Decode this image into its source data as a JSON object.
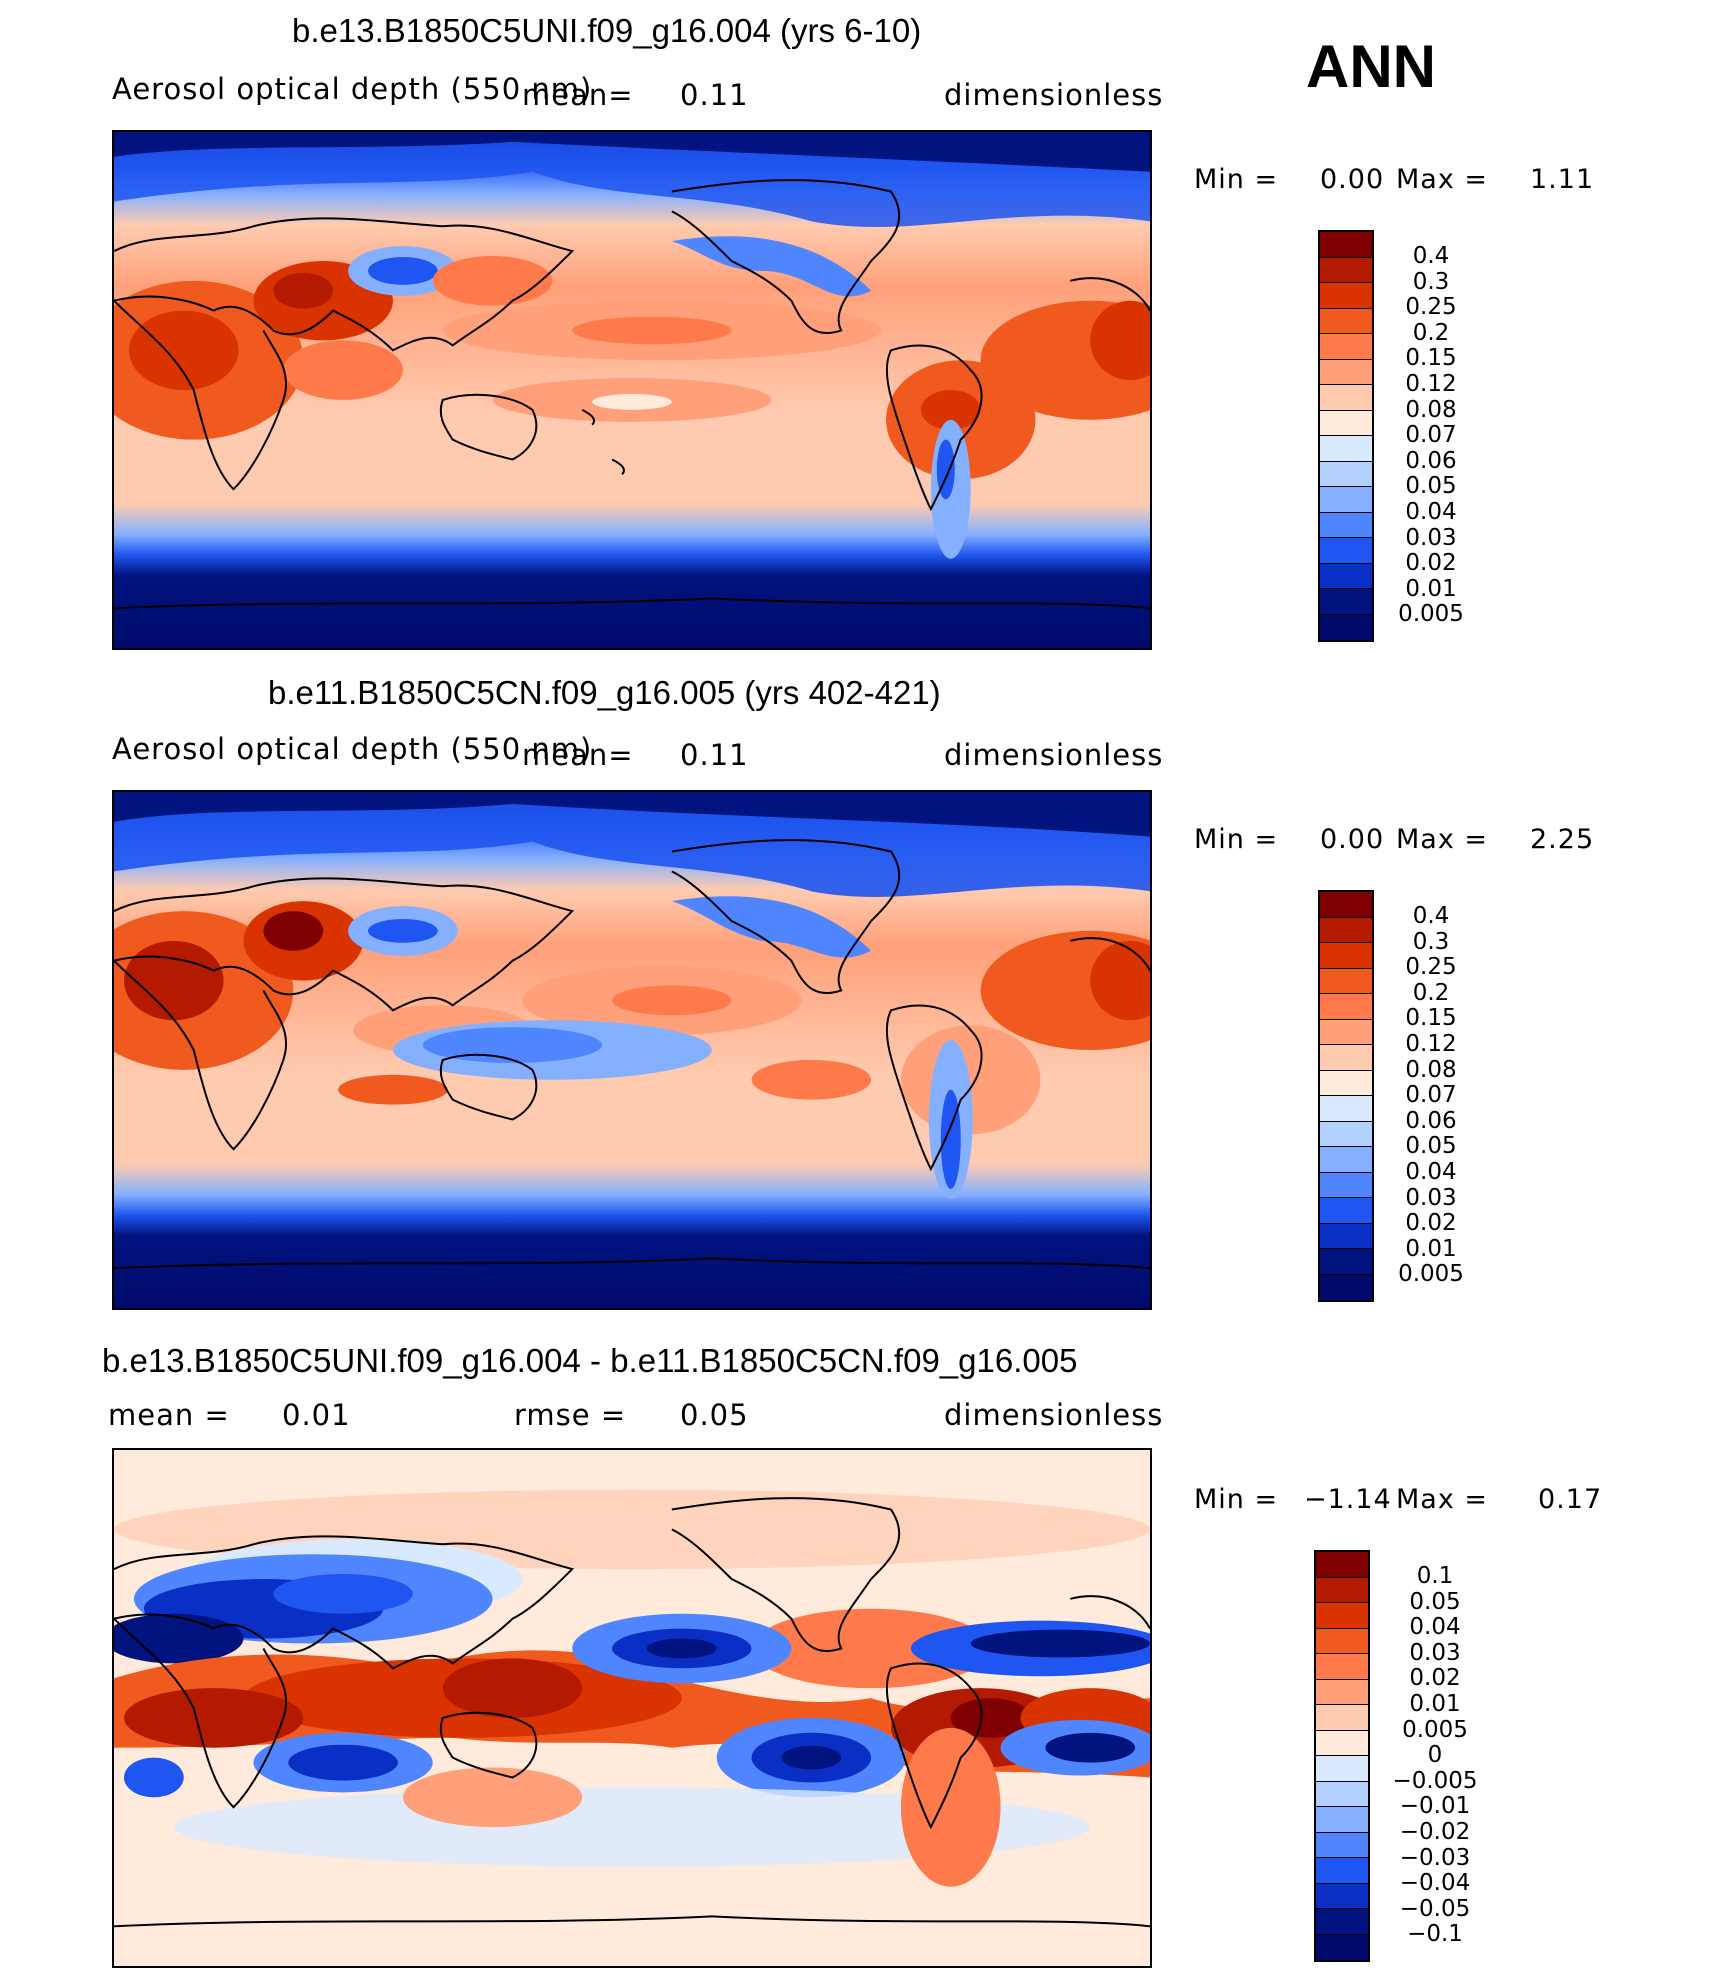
{
  "season": "ANN",
  "panels": [
    {
      "id": "top",
      "title": "b.e13.B1850C5UNI.f09_g16.004 (yrs 6-10)",
      "variable": "Aerosol optical depth (550 nm)",
      "mean_label": "mean=",
      "mean_value": "0.11",
      "units": "dimensionless",
      "min_label": "Min =",
      "min_value": "0.00",
      "max_label": "Max =",
      "max_value": "1.11",
      "colorbar_labels": [
        "0.4",
        "0.3",
        "0.25",
        "0.2",
        "0.15",
        "0.12",
        "0.08",
        "0.07",
        "0.06",
        "0.05",
        "0.04",
        "0.03",
        "0.02",
        "0.01",
        "0.005"
      ]
    },
    {
      "id": "middle",
      "title": "b.e11.B1850C5CN.f09_g16.005 (yrs 402-421)",
      "variable": "Aerosol optical depth (550 nm)",
      "mean_label": "mean=",
      "mean_value": "0.11",
      "units": "dimensionless",
      "min_label": "Min =",
      "min_value": "0.00",
      "max_label": "Max =",
      "max_value": "2.25",
      "colorbar_labels": [
        "0.4",
        "0.3",
        "0.25",
        "0.2",
        "0.15",
        "0.12",
        "0.08",
        "0.07",
        "0.06",
        "0.05",
        "0.04",
        "0.03",
        "0.02",
        "0.01",
        "0.005"
      ]
    },
    {
      "id": "diff",
      "title": "b.e13.B1850C5UNI.f09_g16.004 - b.e11.B1850C5CN.f09_g16.005",
      "mean_label": "mean =",
      "mean_value": "0.01",
      "rmse_label": "rmse =",
      "rmse_value": "0.05",
      "units": "dimensionless",
      "min_label": "Min =",
      "min_value": "−1.14",
      "max_label": "Max =",
      "max_value": "0.17",
      "colorbar_labels": [
        "0.1",
        "0.05",
        "0.04",
        "0.03",
        "0.02",
        "0.01",
        "0.005",
        "0",
        "−0.005",
        "−0.01",
        "−0.02",
        "−0.03",
        "−0.04",
        "−0.05",
        "−0.1"
      ]
    }
  ],
  "colors": {
    "abs_scale": [
      "#7f0000",
      "#b31a00",
      "#d93300",
      "#f05a1e",
      "#ff7a4a",
      "#ffa07a",
      "#ffcbb0",
      "#ffeadb",
      "#d9eaff",
      "#b3d1ff",
      "#85b0ff",
      "#4f86ff",
      "#1f55f0",
      "#0a2fc4",
      "#00137f",
      "#000a6b"
    ],
    "diff_scale": [
      "#7f0000",
      "#b31a00",
      "#d93300",
      "#f05a1e",
      "#ff7a4a",
      "#ffa07a",
      "#ffcbb0",
      "#ffeadb",
      "#d9eaff",
      "#b3d1ff",
      "#85b0ff",
      "#4f86ff",
      "#1f55f0",
      "#0a2fc4",
      "#00137f",
      "#000a6b"
    ],
    "land_outline": "#000000"
  }
}
